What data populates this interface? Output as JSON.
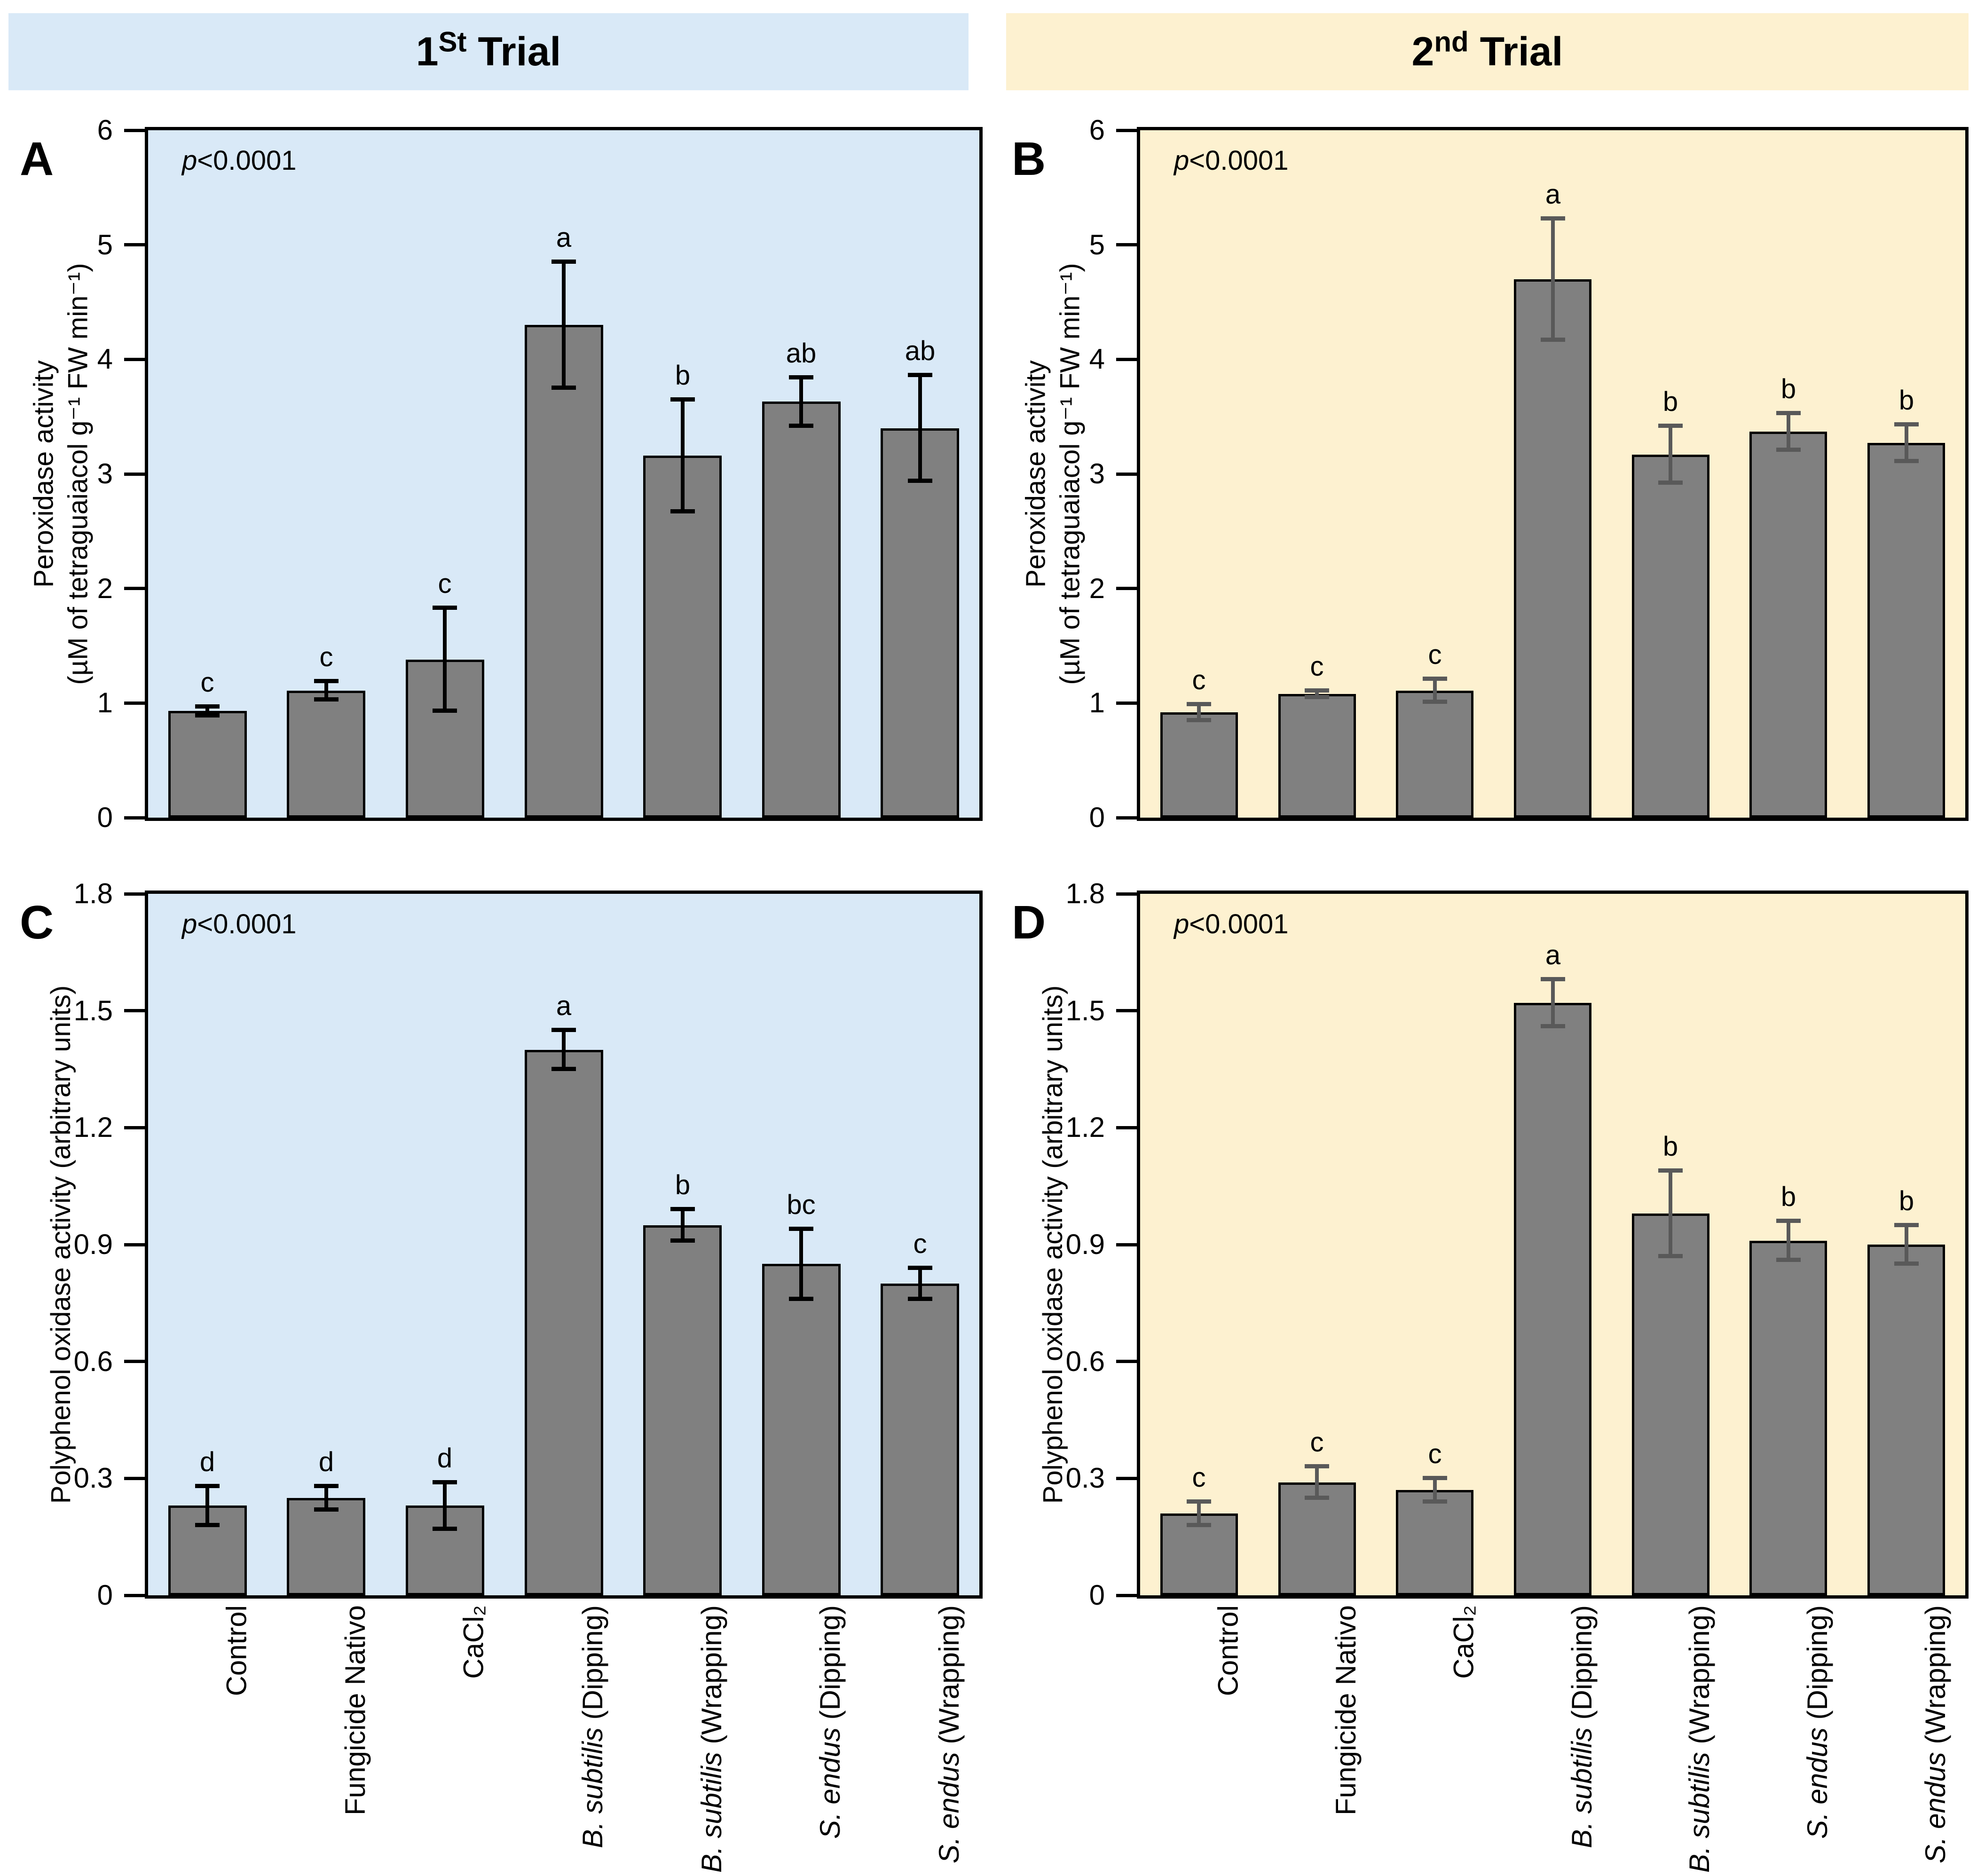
{
  "figure": {
    "headers": [
      {
        "num": "1",
        "sup": "St",
        "rest": " Trial"
      },
      {
        "num": "2",
        "sup": "nd",
        "rest": " Trial"
      }
    ],
    "colors": {
      "trial1_bg": "#d9e9f7",
      "trial2_bg": "#fdf1d0",
      "bar_fill": "#808080",
      "bar_border": "#000000",
      "err_trial1": "#000000",
      "err_trial2": "#595959"
    }
  },
  "categories": [
    [
      {
        "text": "Control",
        "italic": false
      }
    ],
    [
      {
        "text": "Fungicide Nativo",
        "italic": false
      }
    ],
    [
      {
        "text": "CaCl₂",
        "italic": false
      }
    ],
    [
      {
        "text": "B. subtilis",
        "italic": true
      },
      {
        "text": " (Dipping)",
        "italic": false
      }
    ],
    [
      {
        "text": "B. subtilis",
        "italic": true
      },
      {
        "text": " (Wrapping)",
        "italic": false
      }
    ],
    [
      {
        "text": "S. endus",
        "italic": true
      },
      {
        "text": " (Dipping)",
        "italic": false
      }
    ],
    [
      {
        "text": "S. endus",
        "italic": true
      },
      {
        "text": " (Wrapping)",
        "italic": false
      }
    ]
  ],
  "chart_data": [
    {
      "type": "bar",
      "panel": "A",
      "trial": 1,
      "p_italic": "p",
      "p_rest": "<0.0001",
      "ylabel_lines": [
        "Peroxidase activity",
        "(µM of tetraguaiacol g⁻¹ FW min⁻¹)"
      ],
      "ylim": [
        0,
        6
      ],
      "ytick_labels": [
        "0",
        "1",
        "2",
        "3",
        "4",
        "5",
        "6"
      ],
      "ytick_values": [
        0,
        1,
        2,
        3,
        4,
        5,
        6
      ],
      "categories": [
        "Control",
        "Fungicide Nativo",
        "CaCl₂",
        "B. subtilis (Dipping)",
        "B. subtilis (Wrapping)",
        "S. endus (Dipping)",
        "S. endus (Wrapping)"
      ],
      "values": [
        0.93,
        1.11,
        1.38,
        4.3,
        3.16,
        3.63,
        3.4
      ],
      "errors": [
        0.04,
        0.08,
        0.45,
        0.55,
        0.49,
        0.21,
        0.46
      ],
      "sig_letters": [
        "c",
        "c",
        "c",
        "a",
        "b",
        "ab",
        "ab"
      ]
    },
    {
      "type": "bar",
      "panel": "B",
      "trial": 2,
      "p_italic": "p",
      "p_rest": "<0.0001",
      "ylabel_lines": [
        "Peroxidase activity",
        "(µM of tetraguaiacol g⁻¹ FW min⁻¹)"
      ],
      "ylim": [
        0,
        6
      ],
      "ytick_labels": [
        "0",
        "1",
        "2",
        "3",
        "4",
        "5",
        "6"
      ],
      "ytick_values": [
        0,
        1,
        2,
        3,
        4,
        5,
        6
      ],
      "categories": [
        "Control",
        "Fungicide Nativo",
        "CaCl₂",
        "B. subtilis (Dipping)",
        "B. subtilis (Wrapping)",
        "S. endus (Dipping)",
        "S. endus (Wrapping)"
      ],
      "values": [
        0.92,
        1.08,
        1.11,
        4.7,
        3.17,
        3.37,
        3.27
      ],
      "errors": [
        0.07,
        0.03,
        0.1,
        0.53,
        0.25,
        0.16,
        0.16
      ],
      "sig_letters": [
        "c",
        "c",
        "c",
        "a",
        "b",
        "b",
        "b"
      ]
    },
    {
      "type": "bar",
      "panel": "C",
      "trial": 1,
      "p_italic": "p",
      "p_rest": "<0.0001",
      "ylabel_lines": [
        "Polyphenol oxidase activity (arbitrary units)"
      ],
      "ylim": [
        0,
        1.8
      ],
      "ytick_labels": [
        "0",
        "0.3",
        "0.6",
        "0.9",
        "1.2",
        "1.5",
        "1.8"
      ],
      "ytick_values": [
        0,
        0.3,
        0.6,
        0.9,
        1.2,
        1.5,
        1.8
      ],
      "categories": [
        "Control",
        "Fungicide Nativo",
        "CaCl₂",
        "B. subtilis (Dipping)",
        "B. subtilis (Wrapping)",
        "S. endus (Dipping)",
        "S. endus (Wrapping)"
      ],
      "values": [
        0.23,
        0.25,
        0.23,
        1.4,
        0.95,
        0.85,
        0.8
      ],
      "errors": [
        0.05,
        0.03,
        0.06,
        0.05,
        0.04,
        0.09,
        0.04
      ],
      "sig_letters": [
        "d",
        "d",
        "d",
        "a",
        "b",
        "bc",
        "c"
      ]
    },
    {
      "type": "bar",
      "panel": "D",
      "trial": 2,
      "p_italic": "p",
      "p_rest": "<0.0001",
      "ylabel_lines": [
        "Polyphenol oxidase activity (arbitrary units)"
      ],
      "ylim": [
        0,
        1.8
      ],
      "ytick_labels": [
        "0",
        "0.3",
        "0.6",
        "0.9",
        "1.2",
        "1.5",
        "1.8"
      ],
      "ytick_values": [
        0,
        0.3,
        0.6,
        0.9,
        1.2,
        1.5,
        1.8
      ],
      "categories": [
        "Control",
        "Fungicide Nativo",
        "CaCl₂",
        "B. subtilis (Dipping)",
        "B. subtilis (Wrapping)",
        "S. endus (Dipping)",
        "S. endus (Wrapping)"
      ],
      "values": [
        0.21,
        0.29,
        0.27,
        1.52,
        0.98,
        0.91,
        0.9
      ],
      "errors": [
        0.03,
        0.04,
        0.03,
        0.06,
        0.11,
        0.05,
        0.05
      ],
      "sig_letters": [
        "c",
        "c",
        "c",
        "a",
        "b",
        "b",
        "b"
      ]
    }
  ]
}
